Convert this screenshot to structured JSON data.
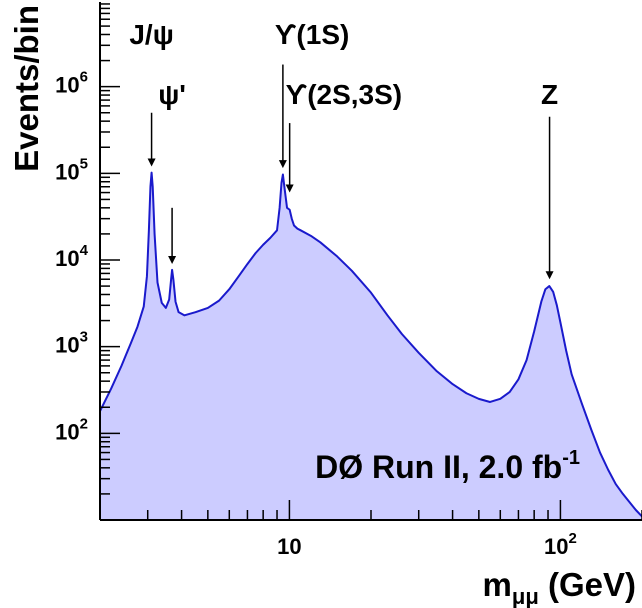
{
  "chart_data": {
    "type": "area",
    "title": "",
    "xlabel": "m",
    "xlabel_sub": "μμ",
    "xlabel_unit": " (GeV)",
    "ylabel": "Events/bin",
    "x_scale": "log",
    "y_scale": "log",
    "xlim": [
      2,
      200
    ],
    "ylim": [
      10,
      10000000
    ],
    "x_ticks": [
      {
        "value": 10,
        "base": "10",
        "exp": ""
      },
      {
        "value": 100,
        "base": "10",
        "exp": "2"
      }
    ],
    "y_ticks": [
      {
        "value": 100,
        "base": "10",
        "exp": "2"
      },
      {
        "value": 1000,
        "base": "10",
        "exp": "3"
      },
      {
        "value": 10000,
        "base": "10",
        "exp": "4"
      },
      {
        "value": 100000,
        "base": "10",
        "exp": "5"
      },
      {
        "value": 1000000,
        "base": "10",
        "exp": "6"
      }
    ],
    "fill_color": "#ccccff",
    "line_color": "#1a1acc",
    "series": [
      {
        "values": [
          [
            2.0,
            180
          ],
          [
            2.2,
            330
          ],
          [
            2.4,
            600
          ],
          [
            2.6,
            1100
          ],
          [
            2.75,
            1700
          ],
          [
            2.9,
            2900
          ],
          [
            2.98,
            6500
          ],
          [
            3.03,
            22000
          ],
          [
            3.07,
            70000
          ],
          [
            3.1,
            102000
          ],
          [
            3.13,
            70000
          ],
          [
            3.18,
            20000
          ],
          [
            3.26,
            5500
          ],
          [
            3.38,
            3200
          ],
          [
            3.5,
            2800
          ],
          [
            3.6,
            3500
          ],
          [
            3.66,
            6000
          ],
          [
            3.69,
            7700
          ],
          [
            3.73,
            6000
          ],
          [
            3.8,
            3300
          ],
          [
            3.9,
            2500
          ],
          [
            4.1,
            2300
          ],
          [
            4.5,
            2500
          ],
          [
            5.0,
            2800
          ],
          [
            5.5,
            3400
          ],
          [
            6.0,
            4600
          ],
          [
            6.5,
            6500
          ],
          [
            7.0,
            9000
          ],
          [
            7.5,
            12000
          ],
          [
            8.0,
            15000
          ],
          [
            8.5,
            18000
          ],
          [
            9.0,
            22000
          ],
          [
            9.2,
            40000
          ],
          [
            9.35,
            78000
          ],
          [
            9.46,
            97000
          ],
          [
            9.58,
            70000
          ],
          [
            9.8,
            40000
          ],
          [
            10.02,
            38000
          ],
          [
            10.2,
            30000
          ],
          [
            10.4,
            25000
          ],
          [
            10.7,
            23000
          ],
          [
            11.0,
            22000
          ],
          [
            12.0,
            19000
          ],
          [
            13.0,
            16000
          ],
          [
            15.0,
            11000
          ],
          [
            17.0,
            7500
          ],
          [
            20.0,
            4200
          ],
          [
            23.0,
            2300
          ],
          [
            26.0,
            1400
          ],
          [
            30.0,
            850
          ],
          [
            35.0,
            520
          ],
          [
            40.0,
            370
          ],
          [
            45.0,
            290
          ],
          [
            50.0,
            250
          ],
          [
            55.0,
            230
          ],
          [
            60.0,
            250
          ],
          [
            65.0,
            300
          ],
          [
            70.0,
            420
          ],
          [
            75.0,
            700
          ],
          [
            80.0,
            1500
          ],
          [
            85.0,
            3300
          ],
          [
            88.0,
            4600
          ],
          [
            91.0,
            5000
          ],
          [
            94.0,
            4300
          ],
          [
            97.0,
            3000
          ],
          [
            100.0,
            1900
          ],
          [
            105.0,
            900
          ],
          [
            110.0,
            480
          ],
          [
            120.0,
            220
          ],
          [
            130.0,
            110
          ],
          [
            140.0,
            60
          ],
          [
            150.0,
            38
          ],
          [
            160.0,
            26
          ],
          [
            170.0,
            20
          ],
          [
            180.0,
            16
          ],
          [
            190.0,
            13
          ],
          [
            200.0,
            11
          ]
        ]
      }
    ],
    "annotations": [
      {
        "text": "J/ψ",
        "x": 3.1,
        "arrow_y_start": 500000,
        "arrow_y_end": 120000
      },
      {
        "text": "ψ'",
        "x": 3.69,
        "arrow_y_start": 40000,
        "arrow_y_end": 9000
      },
      {
        "text": "ϒ(1S)",
        "x": 9.46,
        "arrow_y_start": 1800000,
        "arrow_y_end": 115000
      },
      {
        "text": "ϒ(2S,3S)",
        "x": 10.02,
        "arrow_y_start": 380000,
        "arrow_y_end": 60000
      },
      {
        "text": "Z",
        "x": 91.19,
        "arrow_y_start": 450000,
        "arrow_y_end": 6000
      }
    ],
    "experiment_label": "DØ Run II, 2.0 fb",
    "experiment_label_sup": "-1"
  }
}
